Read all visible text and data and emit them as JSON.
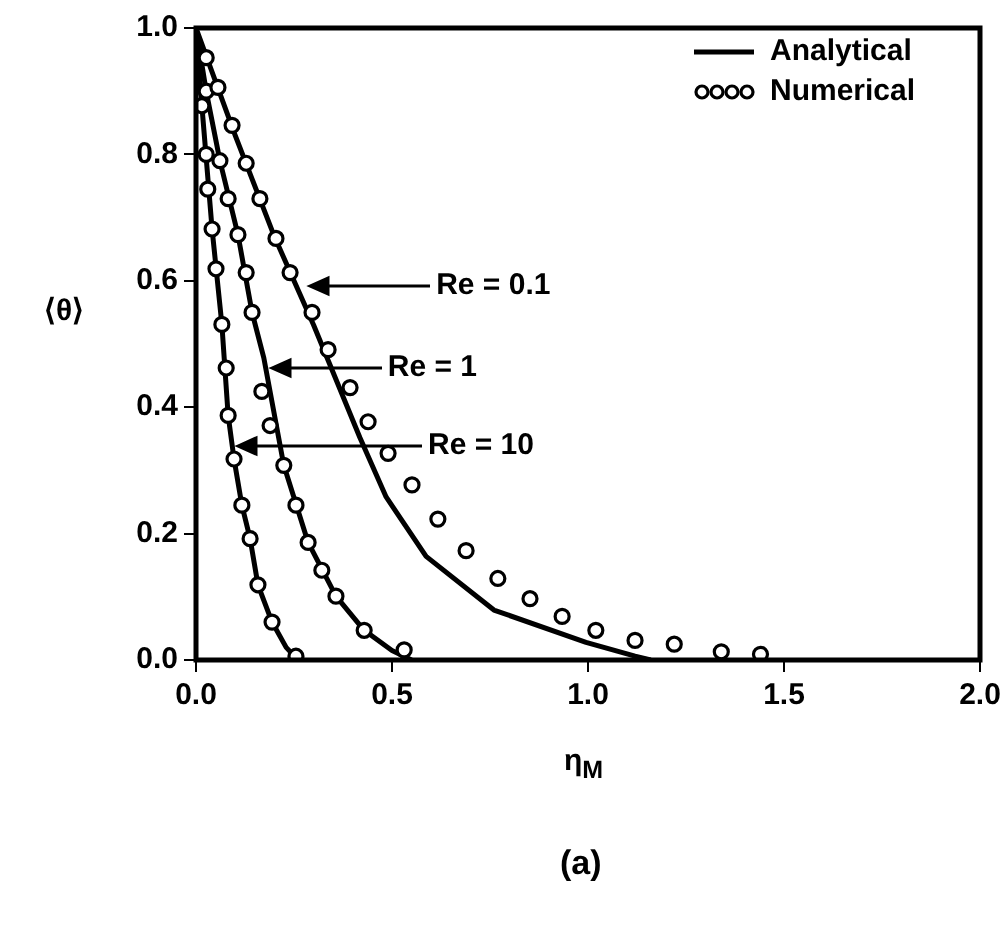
{
  "chart_data": {
    "type": "line",
    "xlabel": "η$_{M}$",
    "ylabel": "⟨θ⟩",
    "xlim": [
      0,
      2
    ],
    "ylim": [
      0,
      1
    ],
    "xticks": [
      {
        "value": 0,
        "label": "0.0"
      },
      {
        "value": 0.5,
        "label": "0.5"
      },
      {
        "value": 1,
        "label": "1.0"
      },
      {
        "value": 1.5,
        "label": "1.5"
      },
      {
        "value": 2,
        "label": "2.0"
      }
    ],
    "yticks": [
      {
        "value": 0,
        "label": "0.0"
      },
      {
        "value": 0.2,
        "label": "0.2"
      },
      {
        "value": 0.4,
        "label": "0.4"
      },
      {
        "value": 0.6,
        "label": "0.6"
      },
      {
        "value": 0.8,
        "label": "0.8"
      },
      {
        "value": 1,
        "label": "1.0"
      }
    ],
    "grid": false,
    "legend": "top right",
    "series": [
      {
        "name": "Analytical",
        "type": "line",
        "color": "#000000",
        "line_style": "solid",
        "marker": "none",
        "x": [
          0,
          0.1,
          0.2,
          0.3,
          0.418,
          0.485,
          0.587,
          0.76,
          0.995,
          1.12,
          1.16
        ],
        "values": [
          1,
          0.83,
          0.67,
          0.53,
          0.352,
          0.258,
          0.164,
          0.079,
          0.028,
          0.006,
          0
        ]
      },
      {
        "type": "line",
        "color": "#000000",
        "line_style": "solid",
        "marker": "none",
        "x": [
          0,
          0.026,
          0.061,
          0.107,
          0.143,
          0.173,
          0.224,
          0.286,
          0.357,
          0.429,
          0.5,
          0.55
        ],
        "values": [
          1,
          0.9,
          0.79,
          0.673,
          0.55,
          0.478,
          0.308,
          0.186,
          0.101,
          0.047,
          0.015,
          0
        ]
      },
      {
        "type": "line",
        "color": "#000000",
        "line_style": "solid",
        "marker": "none",
        "x": [
          0,
          0.015,
          0.041,
          0.066,
          0.082,
          0.097,
          0.117,
          0.138,
          0.158,
          0.194,
          0.23,
          0.26
        ],
        "values": [
          1,
          0.877,
          0.682,
          0.531,
          0.387,
          0.318,
          0.245,
          0.192,
          0.119,
          0.06,
          0.02,
          0
        ]
      },
      {
        "name": "Numerical",
        "type": "scatter",
        "color": "#000000",
        "marker": "circle",
        "x": [
          0.026,
          0.056,
          0.092,
          0.128,
          0.163,
          0.204,
          0.24,
          0.296,
          0.337,
          0.393,
          0.439,
          0.49,
          0.551,
          0.617,
          0.689,
          0.77,
          0.852,
          0.934,
          1.02,
          1.12,
          1.22,
          1.34,
          1.44
        ],
        "values": [
          0.953,
          0.906,
          0.846,
          0.786,
          0.73,
          0.667,
          0.613,
          0.55,
          0.491,
          0.431,
          0.377,
          0.327,
          0.277,
          0.223,
          0.173,
          0.129,
          0.097,
          0.069,
          0.047,
          0.031,
          0.025,
          0.013,
          0.009
        ]
      },
      {
        "type": "scatter",
        "color": "#000000",
        "marker": "circle",
        "x": [
          0.026,
          0.061,
          0.082,
          0.107,
          0.128,
          0.143,
          0.168,
          0.189,
          0.224,
          0.255,
          0.286,
          0.321,
          0.357,
          0.429,
          0.531
        ],
        "values": [
          0.9,
          0.79,
          0.73,
          0.673,
          0.613,
          0.55,
          0.425,
          0.371,
          0.308,
          0.245,
          0.186,
          0.142,
          0.101,
          0.047,
          0.016
        ]
      },
      {
        "type": "scatter",
        "color": "#000000",
        "marker": "circle",
        "x": [
          0.015,
          0.026,
          0.03,
          0.041,
          0.051,
          0.066,
          0.077,
          0.082,
          0.097,
          0.117,
          0.138,
          0.158,
          0.194,
          0.255
        ],
        "values": [
          0.877,
          0.8,
          0.745,
          0.682,
          0.619,
          0.531,
          0.462,
          0.387,
          0.318,
          0.245,
          0.192,
          0.119,
          0.06,
          0.006
        ]
      }
    ],
    "annotations": [
      "Re = 0.1",
      "Re = 1",
      "Re = 10",
      "(a)"
    ]
  }
}
